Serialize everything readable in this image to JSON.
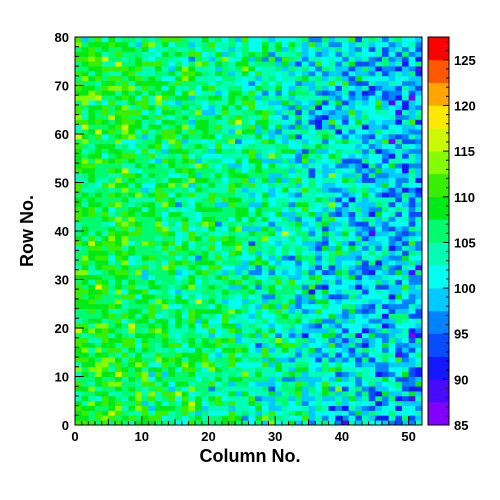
{
  "chart_data": {
    "type": "heatmap",
    "title": "",
    "xlabel": "Column No.",
    "ylabel": "Row No.",
    "xlim": [
      0,
      52
    ],
    "ylim": [
      0,
      80
    ],
    "x_ticks": [
      "0",
      "10",
      "20",
      "30",
      "40",
      "50"
    ],
    "y_ticks": [
      "0",
      "10",
      "20",
      "30",
      "40",
      "50",
      "60",
      "70",
      "80"
    ],
    "z_range": [
      85,
      127.5
    ],
    "z_ticks": [
      "85",
      "90",
      "95",
      "100",
      "105",
      "110",
      "115",
      "120",
      "125"
    ],
    "colormap": "rainbow (purple-blue-cyan-green-yellow-orange-red)",
    "grid": false,
    "legend": "colorbar-right",
    "n_cols": 52,
    "n_rows": 80,
    "bin_value_trend": {
      "by_column": [
        [
          0,
          109
        ],
        [
          25,
          105
        ],
        [
          52,
          98
        ]
      ]
    }
  }
}
